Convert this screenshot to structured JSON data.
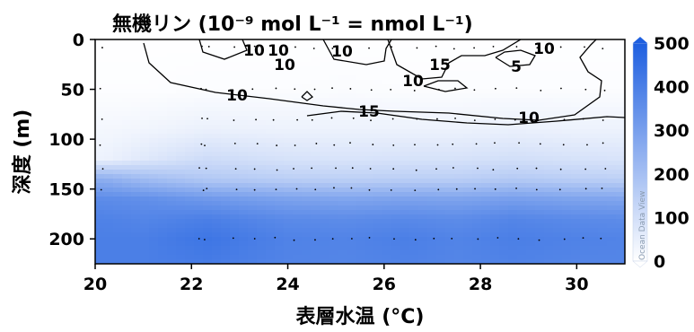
{
  "chart_data": {
    "type": "heatmap",
    "title": "無機リン (10⁻⁹ mol L⁻¹ = nmol L⁻¹)",
    "xlabel": "表層水温 (°C)",
    "ylabel": "深度 (m)",
    "xlim": [
      20,
      31
    ],
    "ylim": [
      225,
      0
    ],
    "y_inverted": true,
    "x_ticks": [
      "20",
      "22",
      "24",
      "26",
      "28",
      "30"
    ],
    "y_ticks": [
      "0",
      "50",
      "100",
      "150",
      "200"
    ],
    "colorbar": {
      "min": 0,
      "max": 500,
      "ticks": [
        "500",
        "400",
        "300",
        "200",
        "100",
        "0"
      ],
      "colors": [
        "#ffffff",
        "#1e5fe0"
      ]
    },
    "watermark": "Ocean Data View",
    "field": {
      "x": [
        20.2,
        21.0,
        22.3,
        24.0,
        25.2,
        26.5,
        27.5,
        28.7,
        30.0,
        31.0
      ],
      "depth": [
        0,
        50,
        90,
        120,
        140,
        160,
        180,
        200,
        225
      ],
      "values": [
        [
          2,
          2,
          2,
          2,
          2,
          2,
          2,
          2,
          2,
          2
        ],
        [
          5,
          5,
          8,
          8,
          10,
          8,
          8,
          8,
          8,
          8
        ],
        [
          25,
          30,
          45,
          40,
          40,
          40,
          40,
          45,
          40,
          40
        ],
        [
          40,
          70,
          110,
          90,
          85,
          90,
          90,
          100,
          90,
          85
        ],
        [
          250,
          210,
          170,
          150,
          145,
          150,
          150,
          165,
          150,
          145
        ],
        [
          360,
          350,
          320,
          290,
          280,
          290,
          285,
          300,
          285,
          280
        ],
        [
          390,
          380,
          400,
          365,
          360,
          370,
          360,
          380,
          365,
          360
        ],
        [
          400,
          400,
          430,
          390,
          385,
          400,
          385,
          400,
          390,
          385
        ],
        [
          400,
          400,
          410,
          385,
          380,
          390,
          380,
          390,
          380,
          380
        ]
      ]
    },
    "contours": [
      {
        "label": "10",
        "level": 10
      },
      {
        "label": "15",
        "level": 15
      },
      {
        "label": "5",
        "level": 5
      }
    ]
  }
}
